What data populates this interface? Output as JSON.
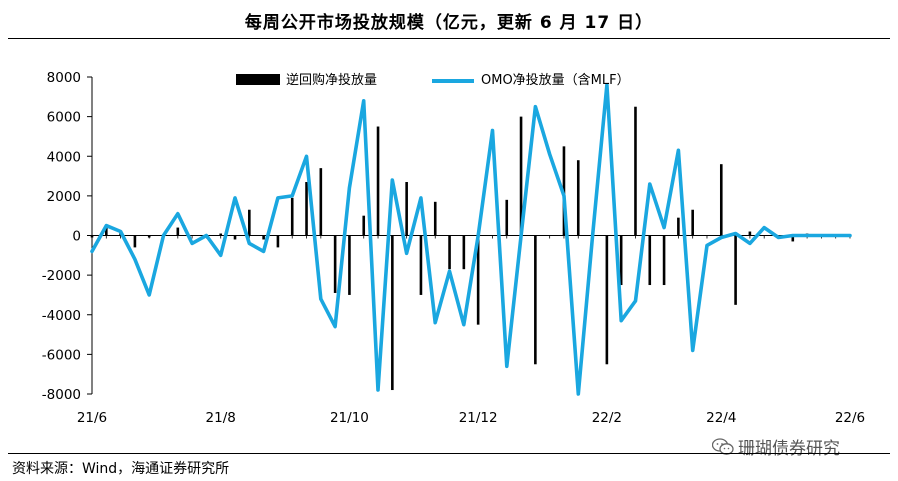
{
  "page": {
    "title": "每周公开市场投放规模（亿元，更新 6 月 17 日）",
    "source": "资料来源：Wind，海通证券研究所",
    "watermark": "珊瑚债券研究"
  },
  "colors": {
    "bar": "#000000",
    "line": "#1aa7e0"
  },
  "chart_data": {
    "type": "bar+line",
    "title": "每周公开市场投放规模（亿元，更新 6 月 17 日）",
    "xlabel": "",
    "ylabel": "",
    "ylim": [
      -8000,
      8000
    ],
    "yticks": [
      8000,
      6000,
      4000,
      2000,
      0,
      -2000,
      -4000,
      -6000,
      -8000
    ],
    "x_tick_labels": [
      {
        "index": 0,
        "label": "21/6"
      },
      {
        "index": 9,
        "label": "21/8"
      },
      {
        "index": 18,
        "label": "21/10"
      },
      {
        "index": 27,
        "label": "21/12"
      },
      {
        "index": 36,
        "label": "22/2"
      },
      {
        "index": 44,
        "label": "22/4"
      },
      {
        "index": 53,
        "label": "22/6"
      }
    ],
    "n_periods": 54,
    "series": [
      {
        "name": "逆回购净投放量",
        "kind": "bar",
        "values": [
          -100,
          500,
          200,
          -600,
          -100,
          0,
          400,
          0,
          0,
          100,
          -200,
          1300,
          -200,
          -600,
          1900,
          2700,
          3400,
          -2900,
          -3000,
          1000,
          5500,
          -7800,
          2700,
          -3000,
          1700,
          -1700,
          -1700,
          -4500,
          0,
          1800,
          6000,
          -6500,
          0,
          4500,
          3800,
          0,
          -6500,
          -2500,
          6500,
          -2500,
          -2500,
          900,
          1300,
          0,
          3600,
          -3500,
          200,
          0,
          0,
          -300,
          100,
          0,
          0,
          0
        ]
      },
      {
        "name": "OMO净投放量（含MLF）",
        "kind": "line",
        "values": [
          -800,
          500,
          200,
          -1200,
          -3000,
          0,
          1100,
          -400,
          0,
          -1000,
          1900,
          -400,
          -800,
          1900,
          2000,
          4000,
          -3200,
          -4600,
          2400,
          6800,
          -7800,
          2800,
          -900,
          1900,
          -4400,
          -1800,
          -4500,
          0,
          5300,
          -6600,
          0,
          6500,
          4100,
          2000,
          -8000,
          0,
          7600,
          -4300,
          -3300,
          2600,
          400,
          4300,
          -5800,
          -500,
          -100,
          100,
          -400,
          400,
          -100,
          0,
          0,
          0,
          0,
          0
        ]
      }
    ],
    "legend": [
      {
        "label": "逆回购净投放量",
        "kind": "bar"
      },
      {
        "label": "OMO净投放量（含MLF）",
        "kind": "line"
      }
    ]
  }
}
